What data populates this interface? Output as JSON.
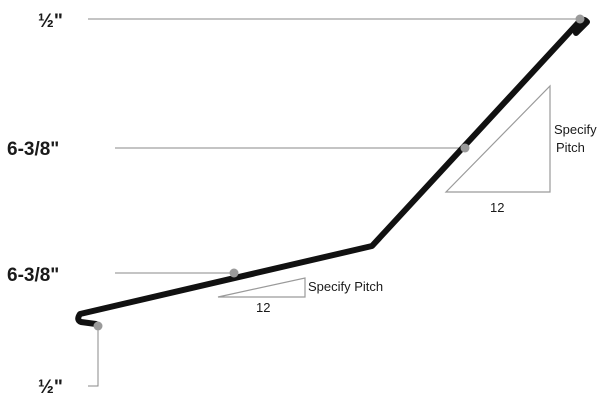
{
  "dimensions": {
    "top_hem": "½\"",
    "upper_segment": "6-3/8\"",
    "lower_segment": "6-3/8\"",
    "bottom_hem": "½\""
  },
  "pitch_notes": {
    "upper_label_line1": "Specify",
    "upper_label_line2": "Pitch",
    "upper_run": "12",
    "lower_label": "Specify Pitch",
    "lower_run": "12"
  }
}
